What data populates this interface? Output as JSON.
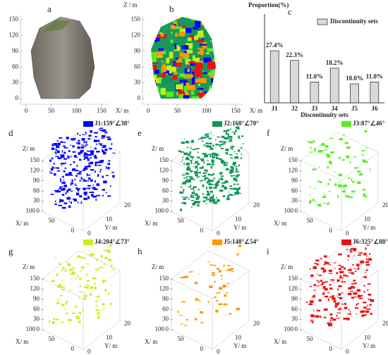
{
  "chart_data": {
    "type": "bar",
    "label": "c",
    "y_label": "Proportion(%)",
    "x_label": "Discontinuity sets",
    "categories": [
      "J1",
      "J2",
      "J3",
      "J4",
      "J5",
      "J6"
    ],
    "series": [
      {
        "name": "Discontinuity sets",
        "color": "#d9d9d9",
        "values": [
          27.4,
          22.3,
          11.0,
          18.2,
          10.0,
          11.0
        ],
        "value_labels": [
          "27.4%",
          "22.3%",
          "11.0%",
          "18.2%",
          "10.0%",
          "11.0%"
        ]
      }
    ],
    "ylim": [
      0,
      30
    ],
    "legend": "top-right"
  },
  "map2d": {
    "panels": [
      "a",
      "b"
    ],
    "z_label": "Z / m",
    "x_label": "X/ m",
    "z_ticks": [
      0,
      30,
      60,
      90,
      120,
      150
    ],
    "x_ticks": [
      0,
      50,
      100,
      150
    ]
  },
  "axes3d": {
    "z_label": "Z/ m",
    "z_ticks": [
      0,
      30,
      60,
      90,
      120,
      150
    ],
    "x_label": "X/ m",
    "x_ticks": [
      0,
      50,
      100
    ],
    "y_label": "Y/ m",
    "y_ticks": [
      0,
      10,
      20
    ],
    "panels": [
      {
        "label": "d",
        "legend": "J1:159°∠38°",
        "color": "#0000ff"
      },
      {
        "label": "e",
        "legend": "J2:168°∠70°",
        "color": "#11955a"
      },
      {
        "label": "f",
        "legend": "J3:87°∠46°",
        "color": "#55ee22"
      },
      {
        "label": "g",
        "legend": "J4:204°∠73°",
        "color": "#c8ee1e"
      },
      {
        "label": "h",
        "legend": "J5:148°∠54°",
        "color": "#ff9900"
      },
      {
        "label": "i",
        "legend": "J6:325°∠88°",
        "color": "#ee1111"
      }
    ]
  }
}
